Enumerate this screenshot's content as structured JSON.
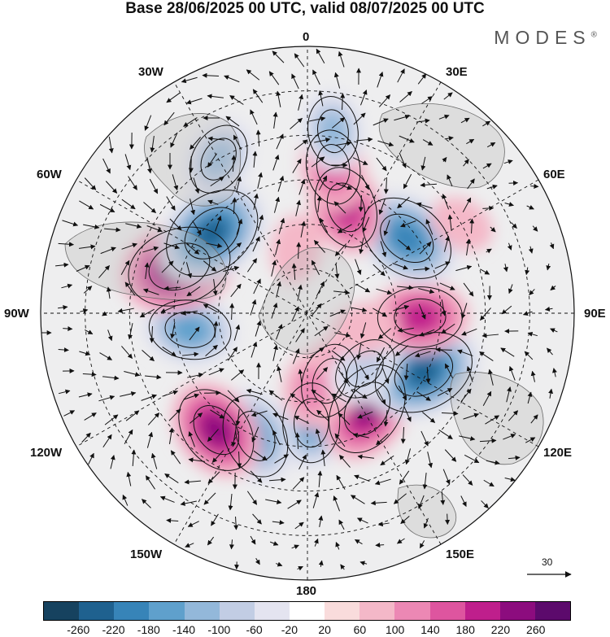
{
  "title": "Base 28/06/2025 00 UTC, valid 08/07/2025 00 UTC",
  "brand": "MODES",
  "brand_mark": "®",
  "longitude_labels": {
    "lon_0": "0",
    "lon_30e": "30E",
    "lon_60e": "60E",
    "lon_90e": "90E",
    "lon_120e": "120E",
    "lon_150e": "150E",
    "lon_180": "180",
    "lon_150w": "150W",
    "lon_120w": "120W",
    "lon_90w": "90W",
    "lon_60w": "60W",
    "lon_30w": "30W"
  },
  "reference_vector": {
    "label": "30"
  },
  "colorbar": {
    "colors": [
      "#16425f",
      "#1f618f",
      "#3784b8",
      "#5fa0cc",
      "#93b8da",
      "#c2cde4",
      "#e4e4f0",
      "#ffffff",
      "#f9dcdc",
      "#f4b8c8",
      "#ec88b4",
      "#de559f",
      "#bf1f8c",
      "#8c0c7e",
      "#5c0a6c"
    ],
    "tick_labels": [
      "-260",
      "-220",
      "-180",
      "-140",
      "-100",
      "-60",
      "-20",
      "20",
      "60",
      "100",
      "140",
      "180",
      "220",
      "260"
    ]
  },
  "anomaly_centers": [
    {
      "lon": 2,
      "lat": 53,
      "value": -140
    },
    {
      "lon": -23,
      "lat": 45,
      "value": -160
    },
    {
      "lon": 32,
      "lat": 52,
      "value": 200
    },
    {
      "lon": -38,
      "lat": 40,
      "value": 180
    },
    {
      "lon": 18,
      "lat": 66,
      "value": 120
    },
    {
      "lon": 3,
      "lat": 64,
      "value": 80
    },
    {
      "lon": 63,
      "lat": 46,
      "value": -230
    },
    {
      "lon": 46,
      "lat": 63,
      "value": -90
    },
    {
      "lon": 88,
      "lat": 52,
      "value": 160
    },
    {
      "lon": -82,
      "lat": 50,
      "value": -150
    },
    {
      "lon": -110,
      "lat": 44,
      "value": 240
    },
    {
      "lon": -130,
      "lat": 48,
      "value": -230
    },
    {
      "lon": 127,
      "lat": 48,
      "value": -210
    },
    {
      "lon": 160,
      "lat": 52,
      "value": 150
    },
    {
      "lon": 170,
      "lat": 40,
      "value": 120
    },
    {
      "lon": -150,
      "lat": 30,
      "value": -110
    },
    {
      "lon": 172,
      "lat": 28,
      "value": -100
    },
    {
      "lon": 120,
      "lat": 30,
      "value": 40
    },
    {
      "lon": 75,
      "lat": 70,
      "value": 50
    },
    {
      "lon": -170,
      "lat": 68,
      "value": 50
    }
  ]
}
